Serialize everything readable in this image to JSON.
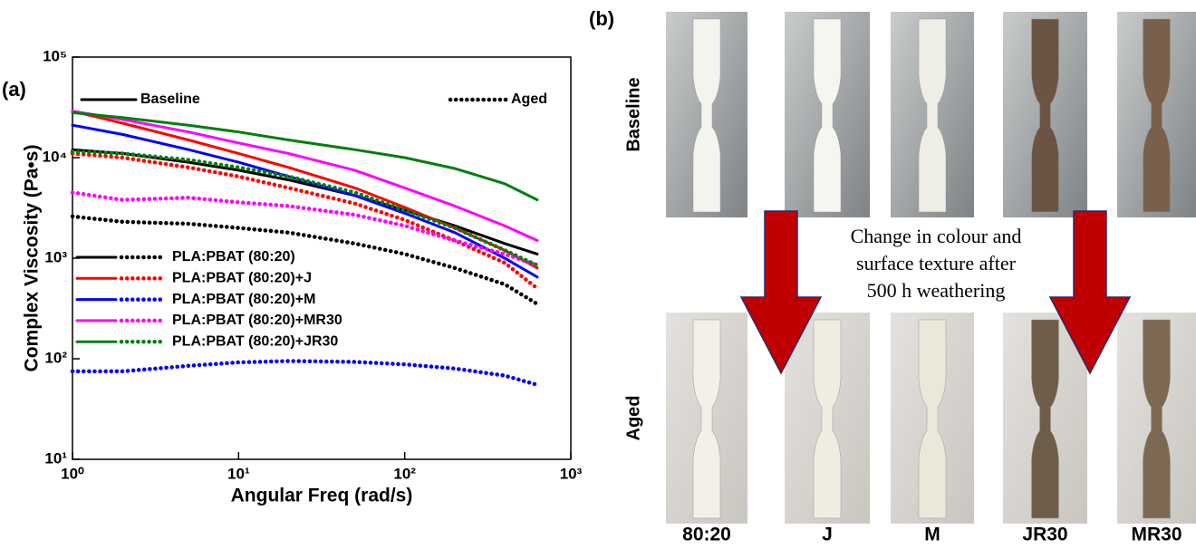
{
  "chart_data": {
    "type": "line",
    "panel_label": "(a)",
    "x_label": "Angular Freq (rad/s)",
    "y_label": "Complex Viscosity (Pa•s)",
    "x_log": true,
    "y_log": true,
    "xlim": [
      1,
      1000
    ],
    "ylim": [
      10,
      100000
    ],
    "xticks": [
      {
        "value": 1,
        "label": "10⁰"
      },
      {
        "value": 10,
        "label": "10¹"
      },
      {
        "value": 100,
        "label": "10²"
      },
      {
        "value": 1000,
        "label": "10³"
      }
    ],
    "yticks": [
      {
        "value": 10,
        "label": "10¹"
      },
      {
        "value": 100,
        "label": "10²"
      },
      {
        "value": 1000,
        "label": "10³"
      },
      {
        "value": 10000,
        "label": "10⁴"
      },
      {
        "value": 100000,
        "label": "10⁵"
      }
    ],
    "line_styles": [
      {
        "name": "Baseline",
        "dash": "solid"
      },
      {
        "name": "Aged",
        "dash": "dotted"
      }
    ],
    "x": [
      1,
      2,
      5,
      10,
      20,
      50,
      100,
      200,
      400,
      628
    ],
    "samples": [
      {
        "name": "PLA:PBAT (80:20)",
        "color": "#000000",
        "baseline": [
          12000,
          11000,
          9000,
          7500,
          6000,
          4200,
          3000,
          2100,
          1400,
          1100
        ],
        "aged": [
          2600,
          2300,
          2200,
          2000,
          1800,
          1400,
          1100,
          800,
          550,
          350
        ]
      },
      {
        "name": "PLA:PBAT (80:20)+J",
        "color": "#ff0000",
        "baseline": [
          29000,
          22000,
          15000,
          11000,
          8000,
          5000,
          3200,
          2000,
          1200,
          800
        ],
        "aged": [
          11000,
          10000,
          8000,
          6500,
          5000,
          3500,
          2400,
          1500,
          900,
          500
        ]
      },
      {
        "name": "PLA:PBAT (80:20)+M",
        "color": "#0000ff",
        "baseline": [
          21000,
          17000,
          12000,
          9000,
          6500,
          4200,
          2800,
          1800,
          1000,
          650
        ],
        "aged": [
          75,
          75,
          85,
          92,
          95,
          93,
          88,
          80,
          68,
          55
        ]
      },
      {
        "name": "PLA:PBAT (80:20)+MR30",
        "color": "#ff00ff",
        "baseline": [
          29000,
          24000,
          18000,
          14000,
          11000,
          7500,
          5000,
          3300,
          2100,
          1500
        ],
        "aged": [
          4500,
          3800,
          4000,
          3600,
          3300,
          2700,
          2100,
          1500,
          1100,
          850
        ]
      },
      {
        "name": "PLA:PBAT (80:20)+JR30",
        "color": "#00800a",
        "baseline": [
          28000,
          25000,
          21000,
          18000,
          15000,
          12000,
          10000,
          7800,
          5500,
          3800
        ],
        "aged": [
          11500,
          11000,
          9500,
          8000,
          6500,
          4500,
          3000,
          2000,
          1200,
          850
        ]
      }
    ]
  },
  "panel_b": {
    "label": "(b)",
    "rows": [
      "Baseline",
      "Aged"
    ],
    "columns": [
      "80:20",
      "J",
      "M",
      "JR30",
      "MR30"
    ],
    "annotation": [
      "Change in colour and",
      "surface texture after",
      "500 h weathering"
    ]
  }
}
